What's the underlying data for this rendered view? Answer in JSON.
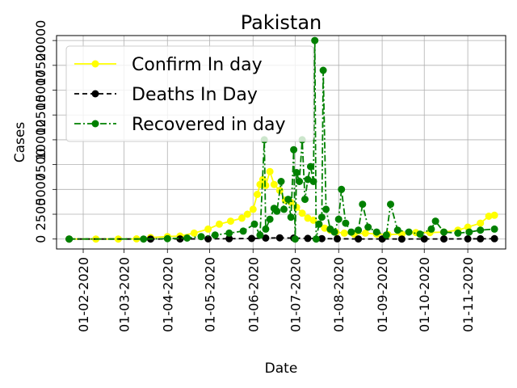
{
  "chart_data": {
    "type": "line",
    "title": "Pakistan",
    "xlabel": "Date",
    "ylabel": "Cases",
    "x_tick_labels": [
      "01-02-2020",
      "01-03-2020",
      "01-04-2020",
      "01-05-2020",
      "01-06-2020",
      "01-07-2020",
      "01-08-2020",
      "01-09-2020",
      "01-10-2020",
      "01-11-2020"
    ],
    "y_tick_labels": [
      "0",
      "2500",
      "5000",
      "7500",
      "10000",
      "12500",
      "15000",
      "17500",
      "20000"
    ],
    "ylim": [
      -1000,
      20500
    ],
    "xlim": [
      "2020-01-13",
      "2020-11-28"
    ],
    "grid": true,
    "legend_position": "top-left",
    "series": [
      {
        "name": "Confirm In day",
        "color": "#ffff00",
        "line_style": "solid",
        "marker": "circle",
        "points": [
          [
            "2020-01-22",
            0
          ],
          [
            "2020-02-10",
            0
          ],
          [
            "2020-02-26",
            2
          ],
          [
            "2020-03-10",
            20
          ],
          [
            "2020-03-20",
            150
          ],
          [
            "2020-04-01",
            250
          ],
          [
            "2020-04-10",
            300
          ],
          [
            "2020-04-20",
            600
          ],
          [
            "2020-04-30",
            1000
          ],
          [
            "2020-05-08",
            1500
          ],
          [
            "2020-05-16",
            1800
          ],
          [
            "2020-05-24",
            2100
          ],
          [
            "2020-05-28",
            2500
          ],
          [
            "2020-06-01",
            3000
          ],
          [
            "2020-06-04",
            4500
          ],
          [
            "2020-06-06",
            5500
          ],
          [
            "2020-06-08",
            6000
          ],
          [
            "2020-06-10",
            5400
          ],
          [
            "2020-06-13",
            6800
          ],
          [
            "2020-06-16",
            5500
          ],
          [
            "2020-06-20",
            4900
          ],
          [
            "2020-06-24",
            3900
          ],
          [
            "2020-06-28",
            3700
          ],
          [
            "2020-07-02",
            3200
          ],
          [
            "2020-07-06",
            2600
          ],
          [
            "2020-07-10",
            2100
          ],
          [
            "2020-07-14",
            1900
          ],
          [
            "2020-07-18",
            1500
          ],
          [
            "2020-07-22",
            1100
          ],
          [
            "2020-07-26",
            900
          ],
          [
            "2020-07-30",
            700
          ],
          [
            "2020-08-05",
            600
          ],
          [
            "2020-08-12",
            500
          ],
          [
            "2020-08-20",
            600
          ],
          [
            "2020-08-28",
            500
          ],
          [
            "2020-09-05",
            450
          ],
          [
            "2020-09-15",
            500
          ],
          [
            "2020-09-25",
            650
          ],
          [
            "2020-10-05",
            650
          ],
          [
            "2020-10-15",
            700
          ],
          [
            "2020-10-25",
            900
          ],
          [
            "2020-11-01",
            1200
          ],
          [
            "2020-11-10",
            1600
          ],
          [
            "2020-11-16",
            2300
          ],
          [
            "2020-11-20",
            2400
          ]
        ]
      },
      {
        "name": "Deaths In Day",
        "color": "#000000",
        "line_style": "dashed",
        "marker": "circle",
        "points": [
          [
            "2020-01-22",
            0
          ],
          [
            "2020-03-20",
            0
          ],
          [
            "2020-04-10",
            10
          ],
          [
            "2020-04-30",
            20
          ],
          [
            "2020-05-15",
            35
          ],
          [
            "2020-05-31",
            60
          ],
          [
            "2020-06-10",
            100
          ],
          [
            "2020-06-20",
            120
          ],
          [
            "2020-06-30",
            100
          ],
          [
            "2020-07-10",
            70
          ],
          [
            "2020-07-20",
            45
          ],
          [
            "2020-07-31",
            25
          ],
          [
            "2020-08-15",
            12
          ],
          [
            "2020-09-01",
            8
          ],
          [
            "2020-09-15",
            5
          ],
          [
            "2020-10-01",
            6
          ],
          [
            "2020-10-15",
            10
          ],
          [
            "2020-11-01",
            15
          ],
          [
            "2020-11-10",
            25
          ],
          [
            "2020-11-20",
            35
          ]
        ]
      },
      {
        "name": "Recovered in day",
        "color": "#008000",
        "line_style": "dashdot",
        "marker": "circle",
        "points": [
          [
            "2020-01-22",
            0
          ],
          [
            "2020-03-15",
            0
          ],
          [
            "2020-04-01",
            40
          ],
          [
            "2020-04-15",
            100
          ],
          [
            "2020-04-25",
            250
          ],
          [
            "2020-05-05",
            400
          ],
          [
            "2020-05-15",
            600
          ],
          [
            "2020-05-25",
            800
          ],
          [
            "2020-06-02",
            1500
          ],
          [
            "2020-06-06",
            400
          ],
          [
            "2020-06-09",
            10000
          ],
          [
            "2020-06-10",
            1000
          ],
          [
            "2020-06-13",
            2000
          ],
          [
            "2020-06-16",
            3100
          ],
          [
            "2020-06-18",
            2800
          ],
          [
            "2020-06-21",
            5800
          ],
          [
            "2020-06-23",
            3000
          ],
          [
            "2020-06-26",
            4000
          ],
          [
            "2020-06-28",
            2200
          ],
          [
            "2020-06-30",
            9000
          ],
          [
            "2020-07-01",
            0
          ],
          [
            "2020-07-02",
            6700
          ],
          [
            "2020-07-04",
            5800
          ],
          [
            "2020-07-06",
            10000
          ],
          [
            "2020-07-08",
            4000
          ],
          [
            "2020-07-10",
            6000
          ],
          [
            "2020-07-12",
            7300
          ],
          [
            "2020-07-14",
            5800
          ],
          [
            "2020-07-15",
            20000
          ],
          [
            "2020-07-16",
            0
          ],
          [
            "2020-07-18",
            1500
          ],
          [
            "2020-07-20",
            2200
          ],
          [
            "2020-07-21",
            17000
          ],
          [
            "2020-07-23",
            3000
          ],
          [
            "2020-07-26",
            1000
          ],
          [
            "2020-07-29",
            700
          ],
          [
            "2020-08-01",
            2000
          ],
          [
            "2020-08-03",
            5000
          ],
          [
            "2020-08-06",
            1600
          ],
          [
            "2020-08-10",
            700
          ],
          [
            "2020-08-15",
            900
          ],
          [
            "2020-08-18",
            3500
          ],
          [
            "2020-08-22",
            1200
          ],
          [
            "2020-08-28",
            700
          ],
          [
            "2020-09-04",
            400
          ],
          [
            "2020-09-07",
            3500
          ],
          [
            "2020-09-12",
            900
          ],
          [
            "2020-09-20",
            700
          ],
          [
            "2020-09-28",
            500
          ],
          [
            "2020-10-06",
            1000
          ],
          [
            "2020-10-09",
            1800
          ],
          [
            "2020-10-15",
            700
          ],
          [
            "2020-10-25",
            600
          ],
          [
            "2020-11-02",
            700
          ],
          [
            "2020-11-10",
            900
          ],
          [
            "2020-11-20",
            1000
          ]
        ]
      }
    ]
  }
}
